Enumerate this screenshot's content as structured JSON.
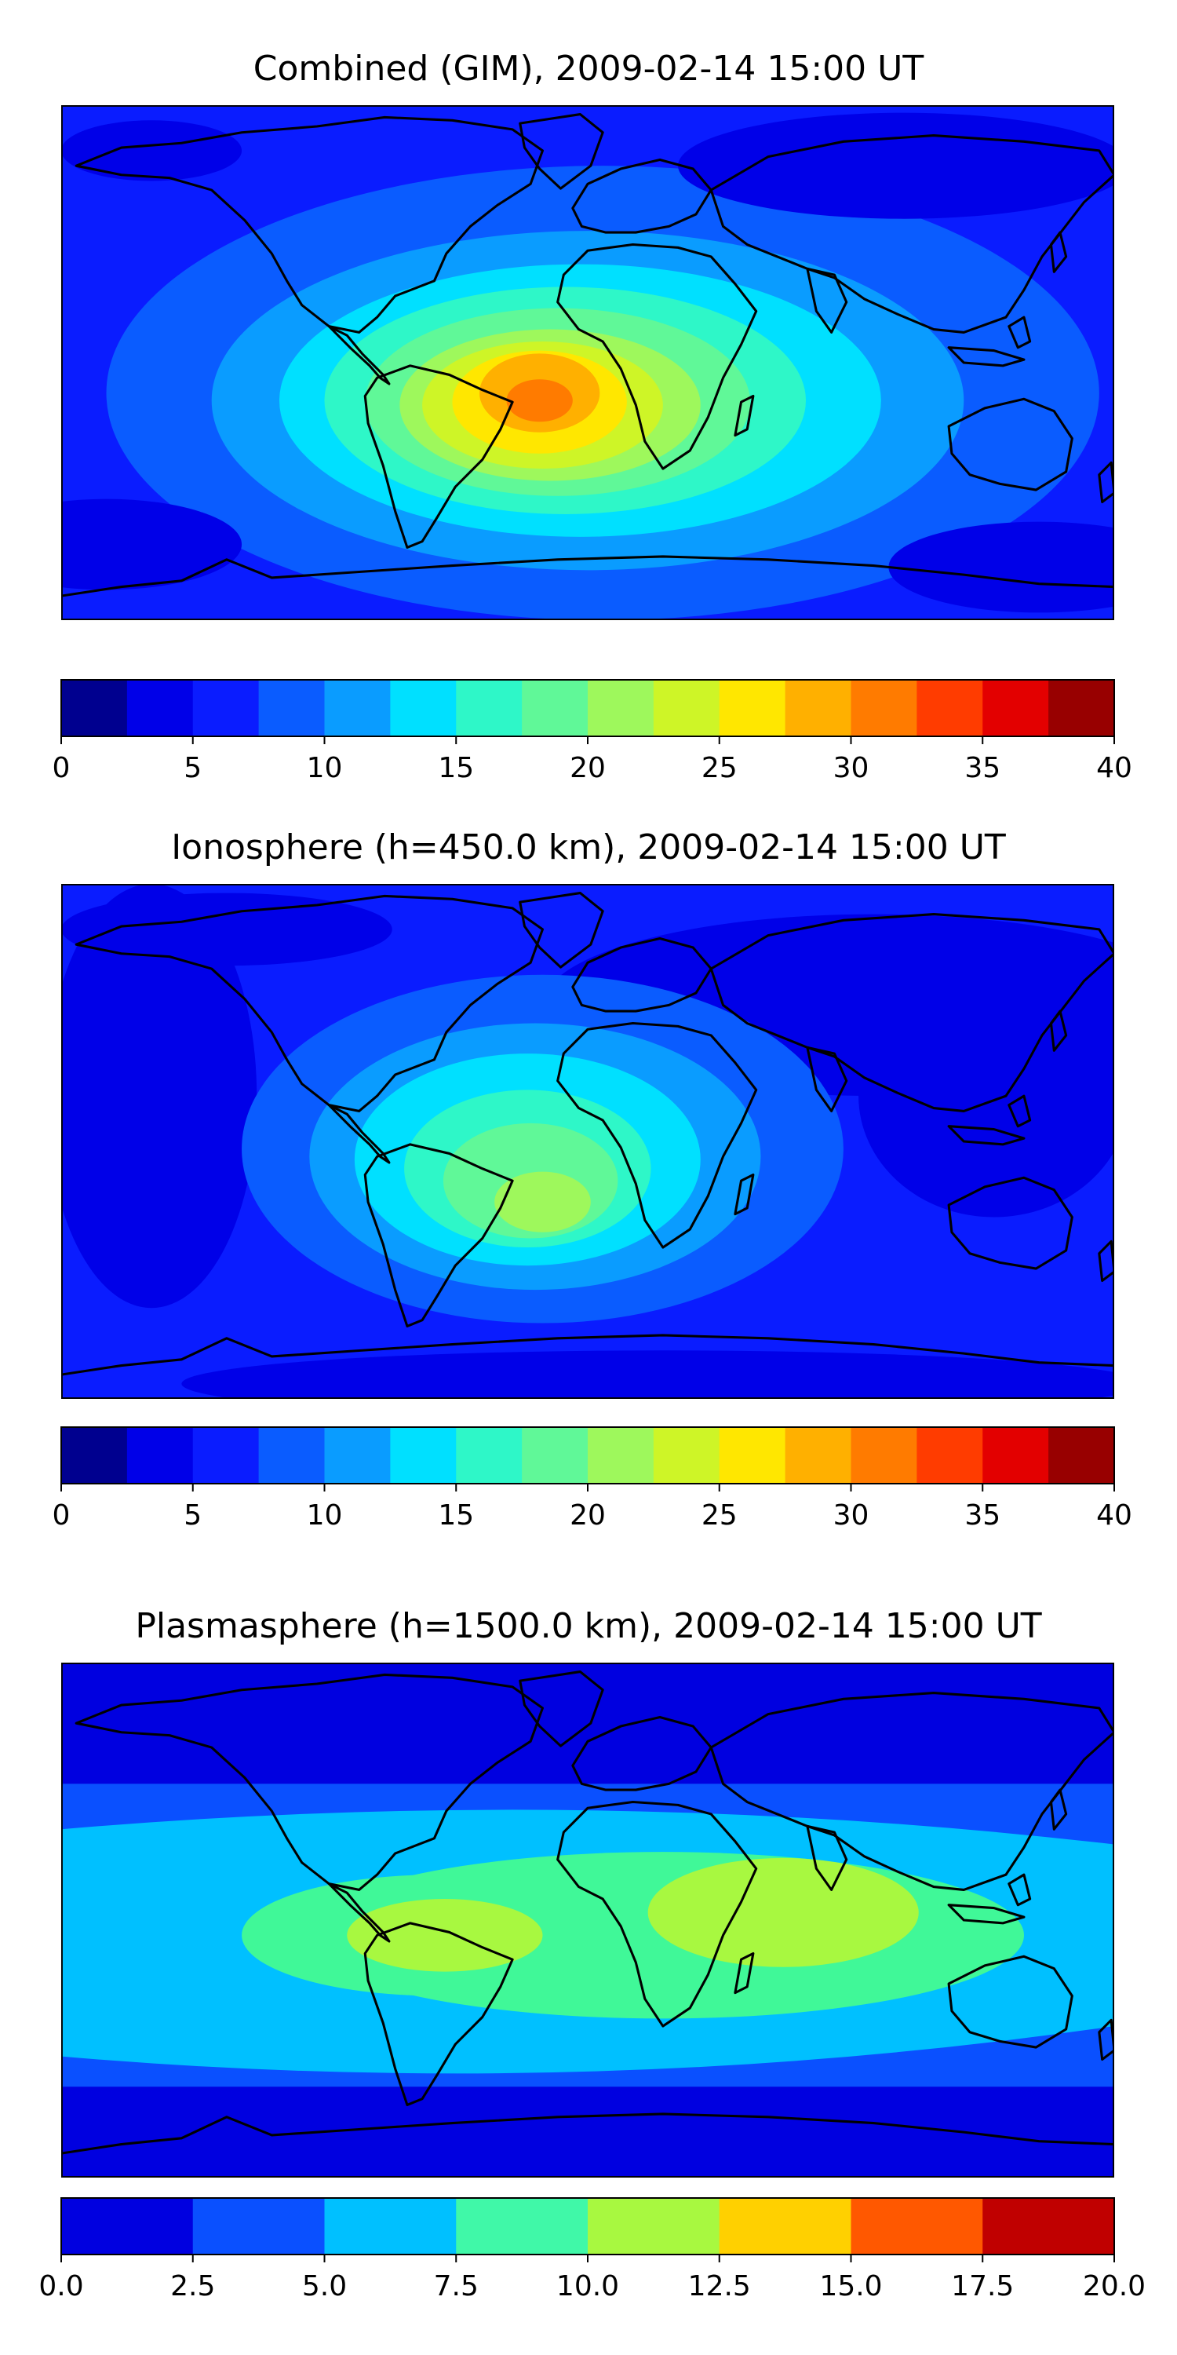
{
  "figure": {
    "panels": [
      {
        "title": "Combined (GIM), 2009-02-14 15:00 UT",
        "colorbar_ticks": [
          "0",
          "5",
          "10",
          "15",
          "20",
          "25",
          "30",
          "35",
          "40"
        ],
        "colorbar_levels": [
          0,
          2.5,
          5,
          7.5,
          10,
          12.5,
          15,
          17.5,
          20,
          22.5,
          25,
          27.5,
          30,
          32.5,
          35,
          37.5,
          40
        ],
        "colorbar_colors": [
          "#00008f",
          "#0000e8",
          "#0a1cff",
          "#0a5cff",
          "#0a9cff",
          "#00e0ff",
          "#2ef7c8",
          "#60f898",
          "#9ef85c",
          "#cef527",
          "#ffe700",
          "#ffb000",
          "#ff7b00",
          "#ff3c00",
          "#e30000",
          "#980000"
        ]
      },
      {
        "title": "Ionosphere  (h=450.0 km), 2009-02-14 15:00 UT",
        "colorbar_ticks": [
          "0",
          "5",
          "10",
          "15",
          "20",
          "25",
          "30",
          "35",
          "40"
        ],
        "colorbar_levels": [
          0,
          2.5,
          5,
          7.5,
          10,
          12.5,
          15,
          17.5,
          20,
          22.5,
          25,
          27.5,
          30,
          32.5,
          35,
          37.5,
          40
        ],
        "colorbar_colors": [
          "#00008f",
          "#0000e8",
          "#0a1cff",
          "#0a5cff",
          "#0a9cff",
          "#00e0ff",
          "#2ef7c8",
          "#60f898",
          "#9ef85c",
          "#cef527",
          "#ffe700",
          "#ffb000",
          "#ff7b00",
          "#ff3c00",
          "#e30000",
          "#980000"
        ]
      },
      {
        "title": "Plasmasphere (h=1500.0 km), 2009-02-14 15:00 UT",
        "colorbar_ticks": [
          "0.0",
          "2.5",
          "5.0",
          "7.5",
          "10.0",
          "12.5",
          "15.0",
          "17.5",
          "20.0"
        ],
        "colorbar_levels": [
          0,
          2.5,
          5,
          7.5,
          10,
          12.5,
          15,
          17.5,
          20
        ],
        "colorbar_colors": [
          "#0000e0",
          "#0a50ff",
          "#00c0ff",
          "#40f8a8",
          "#a8f840",
          "#ffd000",
          "#ff5800",
          "#c00000"
        ]
      }
    ]
  }
}
